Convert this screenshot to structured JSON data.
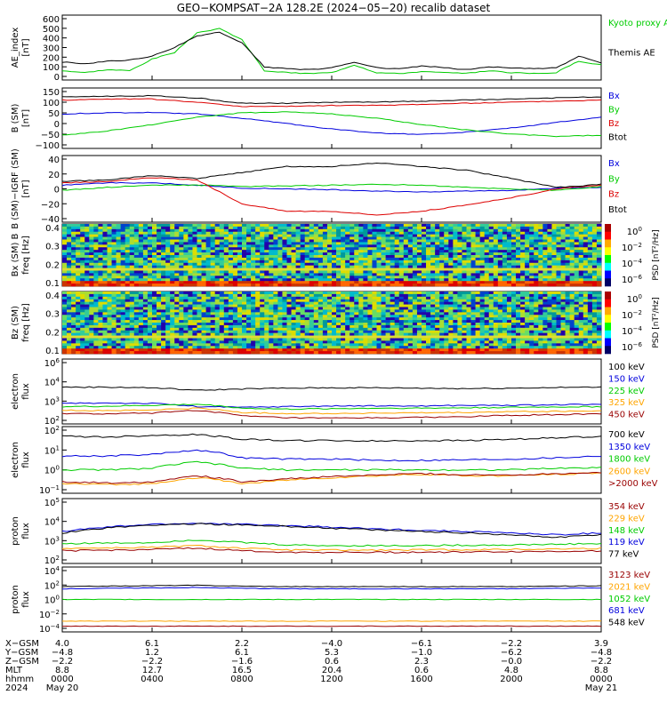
{
  "title": "GEO−KOMPSAT−2A 128.2E (2024−05−20) recalib dataset",
  "colors": {
    "black": "#000000",
    "green": "#00cc00",
    "blue": "#0000dd",
    "red": "#dd0000",
    "orange": "#ffa500",
    "darkred": "#990000",
    "lime": "#22dd22"
  },
  "chart_data": [
    {
      "type": "line",
      "panel": "ae",
      "ylabel": [
        "AE_index",
        "[nT]"
      ],
      "ylim": [
        0,
        600
      ],
      "yticks": [
        "600",
        "500",
        "400",
        "300",
        "200",
        "100",
        "0"
      ],
      "series": [
        {
          "name": "Kyoto proxy AE",
          "color": "#00cc00",
          "x": [
            0,
            1,
            2,
            3,
            4,
            5,
            6,
            7,
            8,
            9,
            10,
            11,
            12,
            13,
            14,
            15,
            16,
            17,
            18,
            19,
            20,
            21,
            22,
            23,
            24
          ],
          "values": [
            60,
            40,
            70,
            60,
            180,
            250,
            450,
            500,
            380,
            60,
            40,
            30,
            40,
            120,
            40,
            30,
            50,
            40,
            30,
            60,
            40,
            30,
            40,
            160,
            120
          ]
        },
        {
          "name": "Themis AE",
          "color": "#000000",
          "x": [
            0,
            1,
            2,
            3,
            4,
            5,
            6,
            7,
            8,
            9,
            10,
            11,
            12,
            13,
            14,
            15,
            16,
            17,
            18,
            19,
            20,
            21,
            22,
            23,
            24
          ],
          "values": [
            150,
            130,
            160,
            170,
            210,
            300,
            420,
            460,
            350,
            100,
            80,
            70,
            90,
            150,
            90,
            80,
            110,
            90,
            70,
            100,
            90,
            80,
            90,
            210,
            140
          ]
        }
      ]
    },
    {
      "type": "line",
      "panel": "b-sm",
      "ylabel": [
        "B (SM)",
        "[nT]"
      ],
      "ylim": [
        -100,
        150
      ],
      "yticks": [
        "150",
        "100",
        "50",
        "0",
        "−50",
        "−100"
      ],
      "series": [
        {
          "name": "Bx",
          "color": "#0000dd",
          "x": [
            0,
            2,
            4,
            6,
            8,
            10,
            12,
            14,
            16,
            18,
            20,
            22,
            24
          ],
          "values": [
            45,
            50,
            52,
            45,
            25,
            0,
            -25,
            -45,
            -50,
            -40,
            -20,
            5,
            30
          ]
        },
        {
          "name": "By",
          "color": "#00cc00",
          "x": [
            0,
            2,
            4,
            6,
            8,
            10,
            12,
            14,
            16,
            18,
            20,
            22,
            24
          ],
          "values": [
            -55,
            -35,
            -5,
            30,
            50,
            55,
            45,
            25,
            -5,
            -30,
            -50,
            -60,
            -55
          ]
        },
        {
          "name": "Bz",
          "color": "#dd0000",
          "x": [
            0,
            2,
            4,
            6,
            8,
            10,
            12,
            14,
            16,
            18,
            20,
            22,
            24
          ],
          "values": [
            110,
            115,
            115,
            100,
            80,
            80,
            85,
            85,
            90,
            95,
            100,
            105,
            110
          ]
        },
        {
          "name": "Btot",
          "color": "#000000",
          "x": [
            0,
            2,
            4,
            6,
            8,
            10,
            12,
            14,
            16,
            18,
            20,
            22,
            24
          ],
          "values": [
            125,
            128,
            130,
            120,
            95,
            95,
            100,
            100,
            105,
            110,
            115,
            120,
            125
          ]
        }
      ]
    },
    {
      "type": "line",
      "panel": "b-minus-igrf",
      "ylabel": [
        "B (SM)−IGRF (SM)",
        "[nT]"
      ],
      "ylim": [
        -40,
        40
      ],
      "yticks": [
        "40",
        "20",
        "0",
        "−20",
        "−40"
      ],
      "series": [
        {
          "name": "Bx",
          "color": "#0000dd",
          "x": [
            0,
            2,
            4,
            6,
            8,
            10,
            12,
            14,
            16,
            18,
            20,
            22,
            24
          ],
          "values": [
            5,
            8,
            8,
            5,
            1,
            0,
            -1,
            -3,
            -4,
            -3,
            -2,
            1,
            2
          ]
        },
        {
          "name": "By",
          "color": "#00cc00",
          "x": [
            0,
            2,
            4,
            6,
            8,
            10,
            12,
            14,
            16,
            18,
            20,
            22,
            24
          ],
          "values": [
            -2,
            2,
            5,
            5,
            3,
            4,
            5,
            6,
            5,
            2,
            0,
            -2,
            3
          ]
        },
        {
          "name": "Bz",
          "color": "#dd0000",
          "x": [
            0,
            2,
            4,
            6,
            8,
            10,
            12,
            14,
            16,
            18,
            20,
            22,
            24
          ],
          "values": [
            8,
            10,
            15,
            12,
            -20,
            -30,
            -30,
            -35,
            -30,
            -22,
            -12,
            0,
            5
          ]
        },
        {
          "name": "Btot",
          "color": "#000000",
          "x": [
            0,
            2,
            4,
            6,
            8,
            10,
            12,
            14,
            16,
            18,
            20,
            22,
            24
          ],
          "values": [
            10,
            12,
            18,
            14,
            22,
            30,
            30,
            35,
            30,
            25,
            14,
            2,
            6
          ]
        }
      ]
    },
    {
      "type": "heatmap",
      "panel": "bx-spectrogram",
      "ylabel": [
        "Bx (SM) B",
        "freq [Hz]"
      ],
      "ylim": [
        0.05,
        0.5
      ],
      "yticks": [
        "0.4",
        "0.3",
        "0.2",
        "0.1"
      ],
      "colorbar": {
        "label": "PSD [nT²/Hz]",
        "ticks": [
          "10^0",
          "10^−2",
          "10^−4",
          "10^−6"
        ]
      }
    },
    {
      "type": "heatmap",
      "panel": "bz-spectrogram",
      "ylabel": [
        "Bz (SM)",
        "freq [Hz]"
      ],
      "ylim": [
        0.05,
        0.5
      ],
      "yticks": [
        "0.4",
        "0.3",
        "0.2",
        "0.1"
      ],
      "colorbar": {
        "label": "PSD [nT²/Hz]",
        "ticks": [
          "10^0",
          "10^−2",
          "10^−4",
          "10^−6"
        ]
      }
    },
    {
      "type": "line",
      "panel": "electron-flux-low",
      "yscale": "log",
      "ylabel": [
        "electron",
        "flux"
      ],
      "yticks": [
        "10^6",
        "10^4",
        "10^3",
        "10^2"
      ],
      "series": [
        {
          "name": "100 keV",
          "color": "#000000",
          "values": [
            20000,
            20000,
            18000,
            12000,
            15000,
            17000,
            18000,
            18000,
            17000,
            16000,
            17000,
            19000,
            20000
          ]
        },
        {
          "name": "150 keV",
          "color": "#0000dd",
          "values": [
            1500,
            1600,
            1500,
            900,
            800,
            900,
            1000,
            1000,
            1000,
            1100,
            1100,
            1200,
            1300
          ]
        },
        {
          "name": "225 keV",
          "color": "#00cc00",
          "values": [
            900,
            950,
            1100,
            1300,
            700,
            600,
            650,
            700,
            700,
            750,
            800,
            850,
            900
          ]
        },
        {
          "name": "325 keV",
          "color": "#ffa500",
          "values": [
            500,
            480,
            520,
            700,
            350,
            300,
            300,
            320,
            330,
            350,
            400,
            420,
            450
          ]
        },
        {
          "name": "450 keV",
          "color": "#990000",
          "values": [
            300,
            280,
            320,
            500,
            200,
            150,
            140,
            150,
            160,
            180,
            220,
            250,
            280
          ]
        }
      ]
    },
    {
      "type": "line",
      "panel": "electron-flux-high",
      "yscale": "log",
      "ylabel": [
        "electron",
        "flux"
      ],
      "yticks": [
        "10^2",
        "10^1",
        "10^0",
        "10^−1"
      ],
      "series": [
        {
          "name": "700 keV",
          "color": "#000000",
          "values": [
            50,
            45,
            55,
            60,
            35,
            30,
            30,
            28,
            30,
            30,
            35,
            40,
            50
          ]
        },
        {
          "name": "1350 keV",
          "color": "#0000dd",
          "values": [
            5,
            5,
            6,
            10,
            4,
            3.5,
            3.5,
            3,
            3,
            3.2,
            3.5,
            4,
            5
          ]
        },
        {
          "name": "1800 keV",
          "color": "#00cc00",
          "values": [
            1,
            1,
            1.2,
            2.5,
            1.2,
            1,
            1,
            1,
            1,
            1,
            1,
            1.2,
            1.3
          ]
        },
        {
          "name": "2600 keV",
          "color": "#ffa500",
          "values": [
            0.2,
            0.18,
            0.2,
            0.4,
            0.2,
            0.3,
            0.4,
            0.5,
            0.6,
            0.5,
            0.5,
            0.6,
            0.7
          ]
        },
        {
          "name": ">2000 keV",
          "color": "#990000",
          "values": [
            0.25,
            0.22,
            0.25,
            0.5,
            0.25,
            0.35,
            0.45,
            0.55,
            0.65,
            0.55,
            0.55,
            0.65,
            0.75
          ]
        }
      ]
    },
    {
      "type": "line",
      "panel": "proton-flux-low",
      "yscale": "log",
      "ylabel": [
        "proton",
        "flux"
      ],
      "yticks": [
        "10^5",
        "10^4",
        "10^3",
        "10^2"
      ],
      "series": [
        {
          "name": "354 keV",
          "color": "#990000",
          "values": [
            300,
            320,
            350,
            400,
            300,
            250,
            250,
            250,
            250,
            260,
            270,
            280,
            300
          ]
        },
        {
          "name": "229 keV",
          "color": "#ffa500",
          "values": [
            400,
            420,
            450,
            550,
            400,
            330,
            320,
            320,
            330,
            340,
            350,
            370,
            400
          ]
        },
        {
          "name": "148 keV",
          "color": "#00cc00",
          "values": [
            700,
            750,
            800,
            1100,
            800,
            600,
            550,
            550,
            560,
            580,
            600,
            650,
            700
          ]
        },
        {
          "name": "119 keV",
          "color": "#0000dd",
          "values": [
            3000,
            5000,
            7000,
            8000,
            7000,
            6000,
            5000,
            4000,
            3500,
            3000,
            2500,
            2000,
            2500
          ]
        },
        {
          "name": "77 keV",
          "color": "#000000",
          "values": [
            2500,
            4500,
            6500,
            7500,
            6500,
            5500,
            4500,
            3500,
            3000,
            2500,
            2000,
            1500,
            2000
          ]
        }
      ]
    },
    {
      "type": "line",
      "panel": "proton-flux-high",
      "yscale": "log",
      "ylabel": [
        "proton",
        "flux"
      ],
      "yticks": [
        "10^4",
        "10^2",
        "10^0",
        "10^−2",
        "10^−4"
      ],
      "series": [
        {
          "name": "3123 keV",
          "color": "#990000",
          "values": [
            0.0002,
            0.0002,
            0.0002,
            0.0002,
            0.0002,
            0.0002,
            0.0002,
            0.0002,
            0.0002,
            0.0002,
            0.0002,
            0.0002,
            0.0002
          ]
        },
        {
          "name": "2021 keV",
          "color": "#ffa500",
          "values": [
            0.001,
            0.001,
            0.001,
            0.001,
            0.001,
            0.001,
            0.001,
            0.001,
            0.001,
            0.001,
            0.001,
            0.001,
            0.001
          ]
        },
        {
          "name": "1052 keV",
          "color": "#00cc00",
          "values": [
            1,
            1,
            1,
            1,
            1,
            1,
            1,
            1,
            1,
            1,
            1,
            1,
            1
          ]
        },
        {
          "name": "681 keV",
          "color": "#0000dd",
          "values": [
            30,
            35,
            40,
            45,
            35,
            30,
            30,
            30,
            30,
            30,
            30,
            35,
            40
          ]
        },
        {
          "name": "548 keV",
          "color": "#000000",
          "values": [
            60,
            70,
            80,
            90,
            70,
            60,
            60,
            60,
            60,
            60,
            60,
            70,
            80
          ]
        }
      ]
    }
  ],
  "ephemeris": {
    "labels": [
      "X−GSM",
      "Y−GSM",
      "Z−GSM",
      "MLT",
      "hhmm",
      "2024"
    ],
    "columns": [
      [
        "4.0",
        "−4.8",
        "−2.2",
        "8.8",
        "0000",
        "May 20"
      ],
      [
        "6.1",
        "1.2",
        "−2.2",
        "12.7",
        "0400",
        ""
      ],
      [
        "2.2",
        "6.1",
        "−1.6",
        "16.5",
        "0800",
        ""
      ],
      [
        "−4.0",
        "5.3",
        "0.6",
        "20.4",
        "1200",
        ""
      ],
      [
        "−6.1",
        "−1.0",
        "2.3",
        "0.6",
        "1600",
        ""
      ],
      [
        "−2.2",
        "−6.2",
        "−0.0",
        "4.8",
        "2000",
        ""
      ],
      [
        "3.9",
        "−4.8",
        "−2.2",
        "8.8",
        "0000",
        "May 21"
      ]
    ]
  }
}
